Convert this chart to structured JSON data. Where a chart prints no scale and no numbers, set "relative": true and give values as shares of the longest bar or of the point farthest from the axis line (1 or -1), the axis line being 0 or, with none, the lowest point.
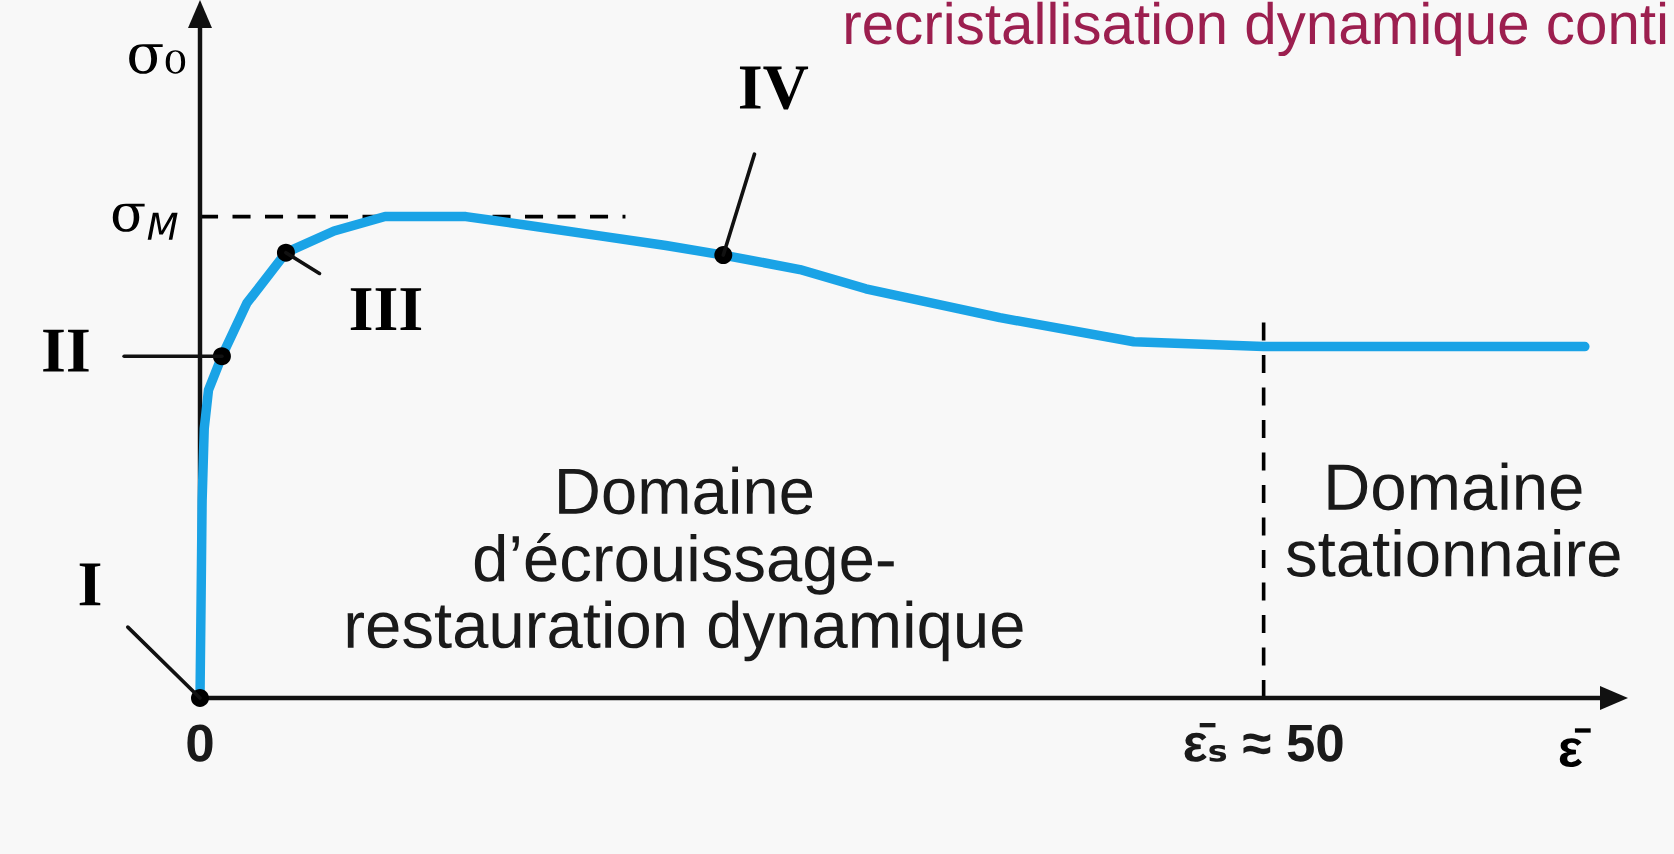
{
  "chart_data": {
    "type": "line",
    "title": "recristallisation dynamique conti",
    "xlabel": "ε̄",
    "ylabel": "σ₀",
    "relative": true,
    "x": [
      0,
      0.05,
      0.1,
      0.2,
      0.4,
      1.03,
      2.2,
      4.04,
      6.3,
      8.7,
      12.5,
      15.7,
      18.8,
      21.9,
      24.6,
      28.2,
      31.3,
      37.6,
      43.9,
      50,
      56.4,
      65.1
    ],
    "xlim": [
      0,
      66
    ],
    "xticks": [
      0,
      {
        "value": 50,
        "label": "ε̄ₛ ≈ 50"
      }
    ],
    "series": [
      {
        "color": "#1aa3e6",
        "marker": "none",
        "values": [
          0,
          0.2,
          0.41,
          0.56,
          0.64,
          0.71,
          0.82,
          0.925,
          0.97,
          1,
          1,
          0.98,
          0.96,
          0.94,
          0.92,
          0.89,
          0.85,
          0.79,
          0.74,
          0.73,
          0.73,
          0.73
        ]
      },
      {
        "type": "scatter",
        "color": "#000000",
        "marker": "circle",
        "x": [
          0,
          1.03,
          4.04,
          24.6
        ],
        "values": [
          0,
          0.71,
          0.925,
          0.92
        ]
      }
    ],
    "ref_lines": [
      {
        "axis": "y",
        "value": 1,
        "label": "σ$_{M}$",
        "line_style": "dashed",
        "color": "#000000"
      },
      {
        "axis": "x",
        "value": 50,
        "line_style": "dashed",
        "color": "#000000"
      }
    ],
    "annotations": [
      {
        "text": "I",
        "x": 0,
        "y": 0
      },
      {
        "text": "II",
        "x": 1.03,
        "y": 0.71
      },
      {
        "text": "III",
        "x": 4.04,
        "y": 0.925
      },
      {
        "text": "IV",
        "x": 24.6,
        "y": 0.92
      },
      "Domaine\nd’écrouissage-\nrestauration dynamique",
      "Domaine\nstationnaire"
    ]
  }
}
